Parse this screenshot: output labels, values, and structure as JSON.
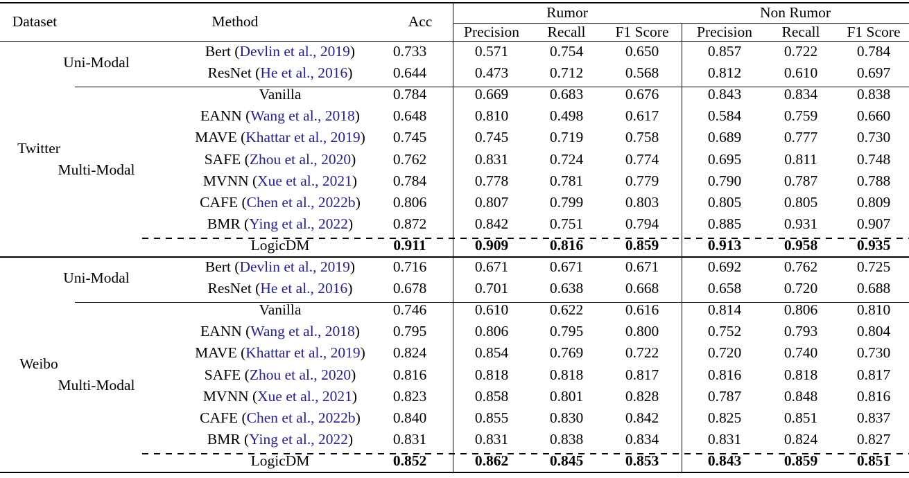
{
  "header": {
    "dataset": "Dataset",
    "method": "Method",
    "acc": "Acc",
    "rumor": "Rumor",
    "non_rumor": "Non Rumor",
    "precision": "Precision",
    "recall": "Recall",
    "f1": "F1 Score"
  },
  "colors": {
    "text": "#000000",
    "citation_link": "#22228a",
    "rule": "#000000"
  },
  "sections": [
    {
      "dataset": "Twitter",
      "groups": [
        {
          "modality": "Uni-Modal",
          "rows": [
            {
              "method": "Bert",
              "cite": "Devlin et al., 2019",
              "acc": "0.733",
              "rumor": [
                "0.571",
                "0.754",
                "0.650"
              ],
              "non_rumor": [
                "0.857",
                "0.722",
                "0.784"
              ]
            },
            {
              "method": "ResNet",
              "cite": "He et al., 2016",
              "acc": "0.644",
              "rumor": [
                "0.473",
                "0.712",
                "0.568"
              ],
              "non_rumor": [
                "0.812",
                "0.610",
                "0.697"
              ]
            }
          ]
        },
        {
          "modality": "Multi-Modal",
          "dashed_before_last": true,
          "rows": [
            {
              "method": "Vanilla",
              "cite": null,
              "acc": "0.784",
              "rumor": [
                "0.669",
                "0.683",
                "0.676"
              ],
              "non_rumor": [
                "0.843",
                "0.834",
                "0.838"
              ]
            },
            {
              "method": "EANN",
              "cite": "Wang et al., 2018",
              "acc": "0.648",
              "rumor": [
                "0.810",
                "0.498",
                "0.617"
              ],
              "non_rumor": [
                "0.584",
                "0.759",
                "0.660"
              ]
            },
            {
              "method": "MAVE",
              "cite": "Khattar et al., 2019",
              "acc": "0.745",
              "rumor": [
                "0.745",
                "0.719",
                "0.758"
              ],
              "non_rumor": [
                "0.689",
                "0.777",
                "0.730"
              ]
            },
            {
              "method": "SAFE",
              "cite": "Zhou et al., 2020",
              "acc": "0.762",
              "rumor": [
                "0.831",
                "0.724",
                "0.774"
              ],
              "non_rumor": [
                "0.695",
                "0.811",
                "0.748"
              ]
            },
            {
              "method": "MVNN",
              "cite": "Xue et al., 2021",
              "acc": "0.784",
              "rumor": [
                "0.778",
                "0.781",
                "0.779"
              ],
              "non_rumor": [
                "0.790",
                "0.787",
                "0.788"
              ]
            },
            {
              "method": "CAFE",
              "cite": "Chen et al., 2022b",
              "acc": "0.806",
              "rumor": [
                "0.807",
                "0.799",
                "0.803"
              ],
              "non_rumor": [
                "0.805",
                "0.805",
                "0.809"
              ]
            },
            {
              "method": "BMR",
              "cite": "Ying et al., 2022",
              "acc": "0.872",
              "rumor": [
                "0.842",
                "0.751",
                "0.794"
              ],
              "non_rumor": [
                "0.885",
                "0.931",
                "0.907"
              ]
            },
            {
              "method": "LogicDM",
              "cite": null,
              "bold_values": true,
              "acc": "0.911",
              "rumor": [
                "0.909",
                "0.816",
                "0.859"
              ],
              "non_rumor": [
                "0.913",
                "0.958",
                "0.935"
              ]
            }
          ]
        }
      ]
    },
    {
      "dataset": "Weibo",
      "groups": [
        {
          "modality": "Uni-Modal",
          "rows": [
            {
              "method": "Bert",
              "cite": "Devlin et al., 2019",
              "acc": "0.716",
              "rumor": [
                "0.671",
                "0.671",
                "0.671"
              ],
              "non_rumor": [
                "0.692",
                "0.762",
                "0.725"
              ]
            },
            {
              "method": "ResNet",
              "cite": "He et al., 2016",
              "acc": "0.678",
              "rumor": [
                "0.701",
                "0.638",
                "0.668"
              ],
              "non_rumor": [
                "0.658",
                "0.720",
                "0.688"
              ]
            }
          ]
        },
        {
          "modality": "Multi-Modal",
          "dashed_before_last": true,
          "rows": [
            {
              "method": "Vanilla",
              "cite": null,
              "acc": "0.746",
              "rumor": [
                "0.610",
                "0.622",
                "0.616"
              ],
              "non_rumor": [
                "0.814",
                "0.806",
                "0.810"
              ]
            },
            {
              "method": "EANN",
              "cite": "Wang et al., 2018",
              "acc": "0.795",
              "rumor": [
                "0.806",
                "0.795",
                "0.800"
              ],
              "non_rumor": [
                "0.752",
                "0.793",
                "0.804"
              ]
            },
            {
              "method": "MAVE",
              "cite": "Khattar et al., 2019",
              "acc": "0.824",
              "rumor": [
                "0.854",
                "0.769",
                "0.722"
              ],
              "non_rumor": [
                "0.720",
                "0.740",
                "0.730"
              ]
            },
            {
              "method": "SAFE",
              "cite": "Zhou et al., 2020",
              "acc": "0.816",
              "rumor": [
                "0.818",
                "0.818",
                "0.817"
              ],
              "non_rumor": [
                "0.816",
                "0.818",
                "0.817"
              ]
            },
            {
              "method": "MVNN",
              "cite": "Xue et al., 2021",
              "acc": "0.823",
              "rumor": [
                "0.858",
                "0.801",
                "0.828"
              ],
              "non_rumor": [
                "0.787",
                "0.848",
                "0.816"
              ]
            },
            {
              "method": "CAFE",
              "cite": "Chen et al., 2022b",
              "acc": "0.840",
              "rumor": [
                "0.855",
                "0.830",
                "0.842"
              ],
              "non_rumor": [
                "0.825",
                "0.851",
                "0.837"
              ]
            },
            {
              "method": "BMR",
              "cite": "Ying et al., 2022",
              "acc": "0.831",
              "rumor": [
                "0.831",
                "0.838",
                "0.834"
              ],
              "non_rumor": [
                "0.831",
                "0.824",
                "0.827"
              ]
            },
            {
              "method": "LogicDM",
              "cite": null,
              "bold_values": true,
              "acc": "0.852",
              "rumor": [
                "0.862",
                "0.845",
                "0.853"
              ],
              "non_rumor": [
                "0.843",
                "0.859",
                "0.851"
              ]
            }
          ]
        }
      ]
    }
  ]
}
